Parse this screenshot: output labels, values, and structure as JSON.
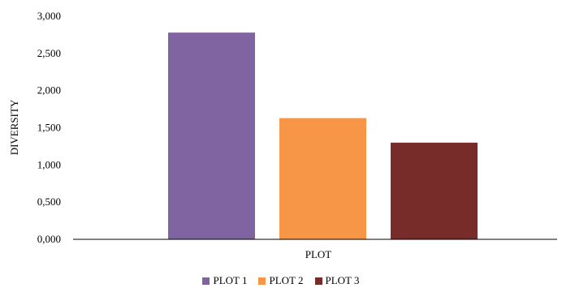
{
  "chart_data": {
    "type": "bar",
    "title": "",
    "xlabel": "PLOT",
    "ylabel": "DIVERSITY",
    "ylim": [
      0,
      3
    ],
    "yticks": [
      0,
      0.5,
      1,
      1.5,
      2,
      2.5,
      3
    ],
    "ytick_labels": [
      "0,000",
      "0,500",
      "1,000",
      "1,500",
      "2,000",
      "2,500",
      "3,000"
    ],
    "grid": false,
    "legend_position": "bottom",
    "series": [
      {
        "name": "PLOT 1",
        "value": 2.78,
        "color": "#8064a2"
      },
      {
        "name": "PLOT 2",
        "value": 1.63,
        "color": "#f79646"
      },
      {
        "name": "PLOT 3",
        "value": 1.3,
        "color": "#772c2a"
      }
    ]
  }
}
